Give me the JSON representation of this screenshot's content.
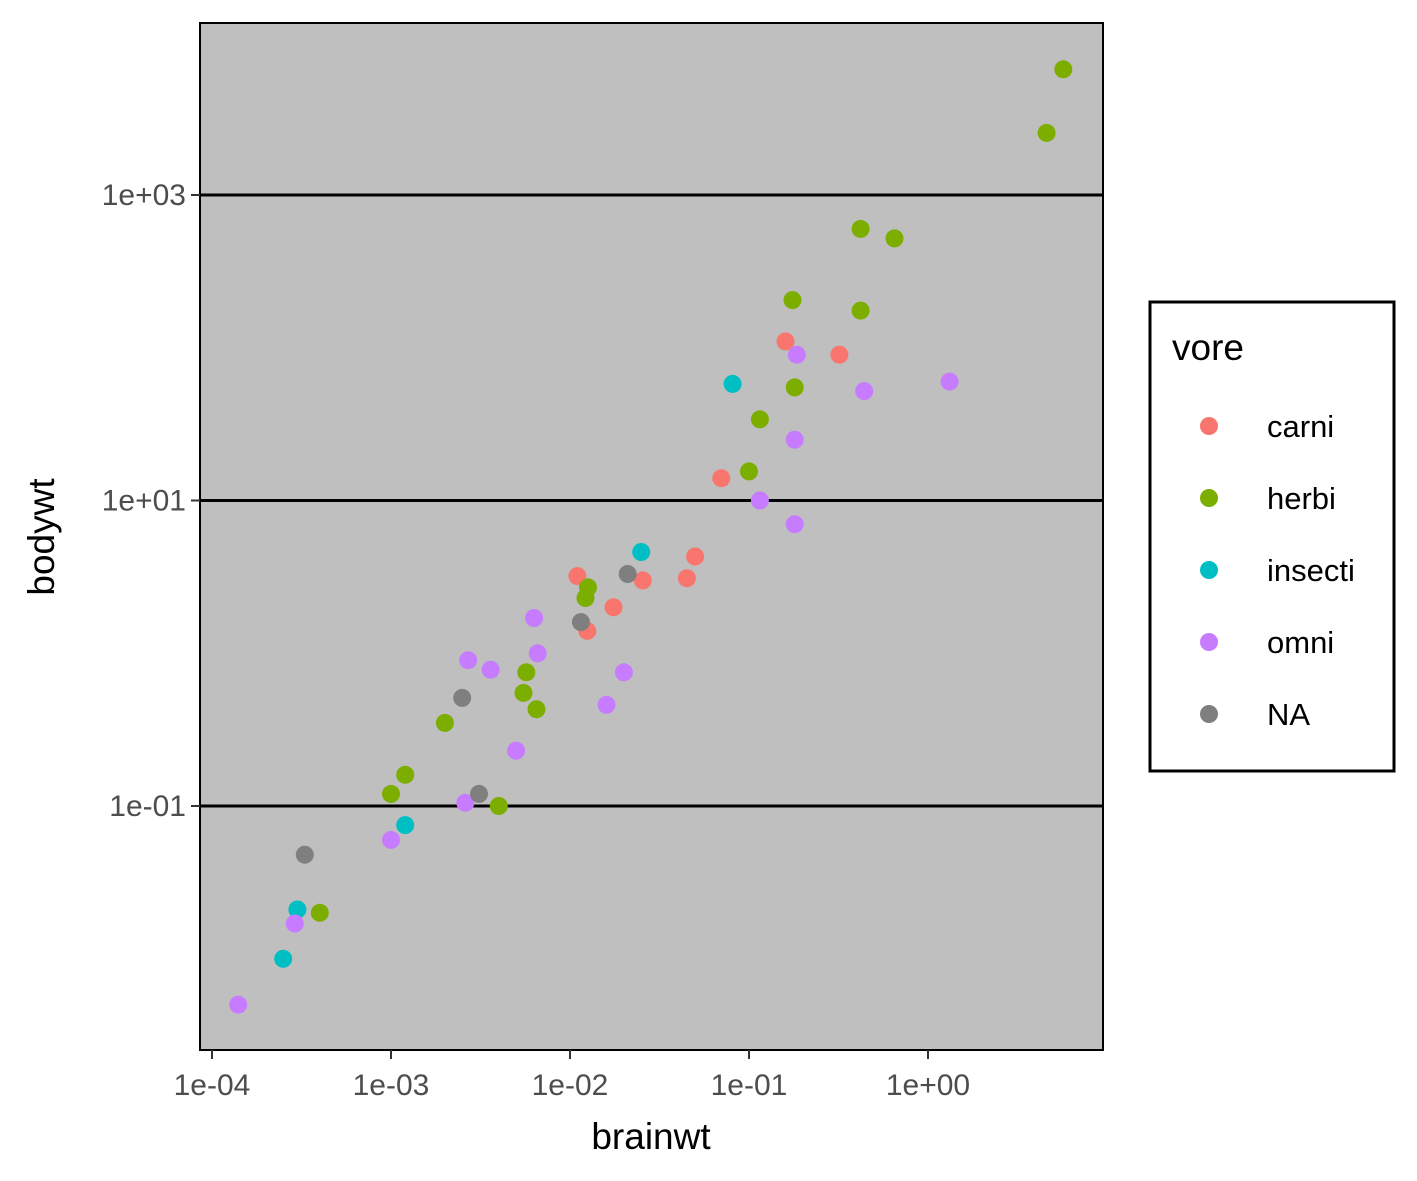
{
  "chart_data": {
    "type": "scatter",
    "xlabel": "brainwt",
    "ylabel": "bodywt",
    "x_scale": "log10",
    "y_scale": "log10",
    "xlim": [
      0.0001,
      8.0
    ],
    "ylim": [
      0.003,
      10000
    ],
    "x_ticks": [
      {
        "value": 0.0001,
        "label": "1e-04"
      },
      {
        "value": 0.001,
        "label": "1e-03"
      },
      {
        "value": 0.01,
        "label": "1e-02"
      },
      {
        "value": 0.1,
        "label": "1e-01"
      },
      {
        "value": 1,
        "label": "1e+00"
      }
    ],
    "y_ticks": [
      {
        "value": 0.1,
        "label": "1e-01"
      },
      {
        "value": 10,
        "label": "1e+01"
      },
      {
        "value": 1000,
        "label": "1e+03"
      }
    ],
    "grid": "major-y",
    "legend": {
      "title": "vore",
      "position": "right",
      "entries": [
        {
          "name": "carni",
          "color": "#F8766D"
        },
        {
          "name": "herbi",
          "color": "#7CAE00"
        },
        {
          "name": "insecti",
          "color": "#00BFC4"
        },
        {
          "name": "omni",
          "color": "#C77CFF"
        },
        {
          "name": "NA",
          "color": "#7F7F7F"
        }
      ]
    },
    "series": [
      {
        "name": "carni",
        "color": "#F8766D",
        "points": [
          [
            0.011,
            3.2
          ],
          [
            0.0125,
            1.4
          ],
          [
            0.0175,
            2.0
          ],
          [
            0.0255,
            3.0
          ],
          [
            0.045,
            3.1
          ],
          [
            0.05,
            4.3
          ],
          [
            0.07,
            14.0
          ],
          [
            0.16,
            110
          ],
          [
            0.32,
            90
          ]
        ]
      },
      {
        "name": "herbi",
        "color": "#7CAE00",
        "points": [
          [
            0.0004,
            0.02
          ],
          [
            0.001,
            0.12
          ],
          [
            0.0012,
            0.16
          ],
          [
            0.002,
            0.35
          ],
          [
            0.004,
            0.1
          ],
          [
            0.0055,
            0.55
          ],
          [
            0.0057,
            0.75
          ],
          [
            0.0065,
            0.43
          ],
          [
            0.0122,
            2.3
          ],
          [
            0.0126,
            2.7
          ],
          [
            0.1,
            15.5
          ],
          [
            0.115,
            34
          ],
          [
            0.175,
            205
          ],
          [
            0.18,
            55
          ],
          [
            0.42,
            175
          ],
          [
            0.42,
            600
          ],
          [
            0.65,
            520
          ],
          [
            4.6,
            2550
          ],
          [
            5.7,
            6650
          ]
        ]
      },
      {
        "name": "insecti",
        "color": "#00BFC4",
        "points": [
          [
            0.00025,
            0.01
          ],
          [
            0.0003,
            0.021
          ],
          [
            0.0012,
            0.075
          ],
          [
            0.025,
            4.6
          ],
          [
            0.081,
            58
          ]
        ]
      },
      {
        "name": "omni",
        "color": "#C77CFF",
        "points": [
          [
            0.00014,
            0.005
          ],
          [
            0.00029,
            0.017
          ],
          [
            0.001,
            0.06
          ],
          [
            0.0026,
            0.105
          ],
          [
            0.0027,
            0.9
          ],
          [
            0.0036,
            0.78
          ],
          [
            0.005,
            0.23
          ],
          [
            0.0063,
            1.7
          ],
          [
            0.0066,
            1.0
          ],
          [
            0.016,
            0.46
          ],
          [
            0.02,
            0.75
          ],
          [
            0.115,
            10
          ],
          [
            0.18,
            7.0
          ],
          [
            0.18,
            25
          ],
          [
            0.185,
            90
          ],
          [
            0.44,
            52
          ],
          [
            1.32,
            60
          ]
        ]
      },
      {
        "name": "NA",
        "color": "#7F7F7F",
        "points": [
          [
            0.00033,
            0.048
          ],
          [
            0.0025,
            0.51
          ],
          [
            0.0031,
            0.12
          ],
          [
            0.0115,
            1.6
          ],
          [
            0.021,
            3.3
          ]
        ]
      }
    ]
  }
}
